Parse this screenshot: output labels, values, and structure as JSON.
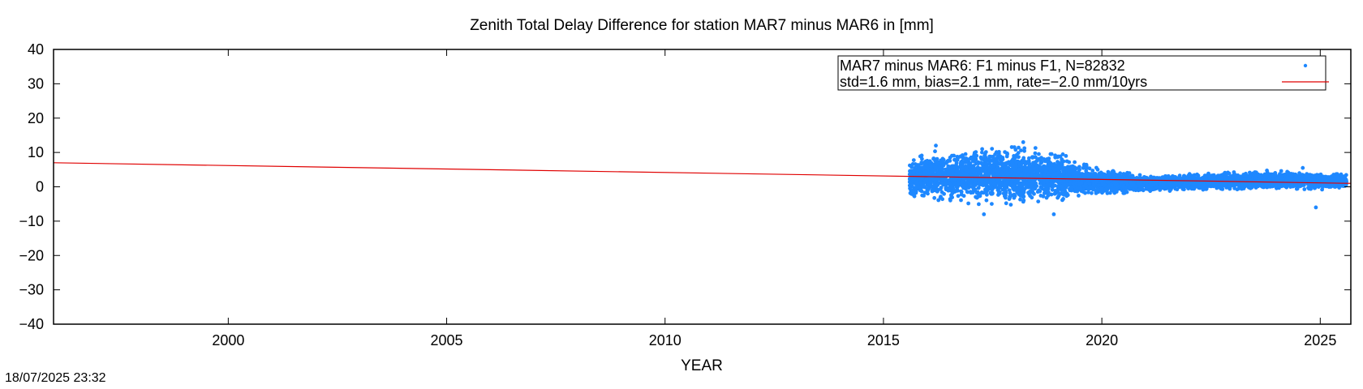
{
  "chart_data": {
    "type": "scatter",
    "title": "Zenith Total Delay Difference for station MAR7 minus MAR6 in [mm]",
    "xlabel": "YEAR",
    "ylabel": "",
    "xlim": [
      1996.0,
      2025.7
    ],
    "ylim": [
      -40,
      40
    ],
    "xticks": [
      2000,
      2005,
      2010,
      2015,
      2020,
      2025
    ],
    "yticks": [
      40,
      30,
      20,
      10,
      0,
      -10,
      -20,
      -30,
      -40
    ],
    "grid": false,
    "legend_position": "top-right",
    "series": [
      {
        "name": "MAR7 minus MAR6: F1 minus F1, N=82832",
        "kind": "points",
        "color": "#1e88ff",
        "x_range": [
          2015.6,
          2025.6
        ],
        "profile": [
          {
            "x": 2015.6,
            "mean": 2.5,
            "spread": 3.5
          },
          {
            "x": 2016.0,
            "mean": 3.0,
            "spread": 4.5
          },
          {
            "x": 2017.0,
            "mean": 3.0,
            "spread": 5.0
          },
          {
            "x": 2018.0,
            "mean": 3.5,
            "spread": 5.5
          },
          {
            "x": 2019.0,
            "mean": 3.0,
            "spread": 4.5
          },
          {
            "x": 2019.5,
            "mean": 2.0,
            "spread": 3.0
          },
          {
            "x": 2020.5,
            "mean": 1.0,
            "spread": 2.0
          },
          {
            "x": 2021.0,
            "mean": 1.0,
            "spread": 1.5
          },
          {
            "x": 2022.5,
            "mean": 1.5,
            "spread": 1.5
          },
          {
            "x": 2024.0,
            "mean": 2.0,
            "spread": 1.8
          },
          {
            "x": 2025.6,
            "mean": 1.5,
            "spread": 1.5
          }
        ],
        "extremes": [
          {
            "x": 2017.3,
            "y": -8
          },
          {
            "x": 2018.9,
            "y": -8
          },
          {
            "x": 2018.2,
            "y": 13
          },
          {
            "x": 2016.2,
            "y": 12
          },
          {
            "x": 2024.9,
            "y": -6
          },
          {
            "x": 2024.6,
            "y": 5.5
          }
        ]
      },
      {
        "name": "std=1.6 mm, bias=2.1 mm, rate=−2.0 mm/10yrs",
        "kind": "line",
        "color": "#e00000",
        "points": [
          [
            1996.0,
            7.0
          ],
          [
            2025.7,
            1.0
          ]
        ]
      }
    ]
  },
  "timestamp": "18/07/2025 23:32"
}
